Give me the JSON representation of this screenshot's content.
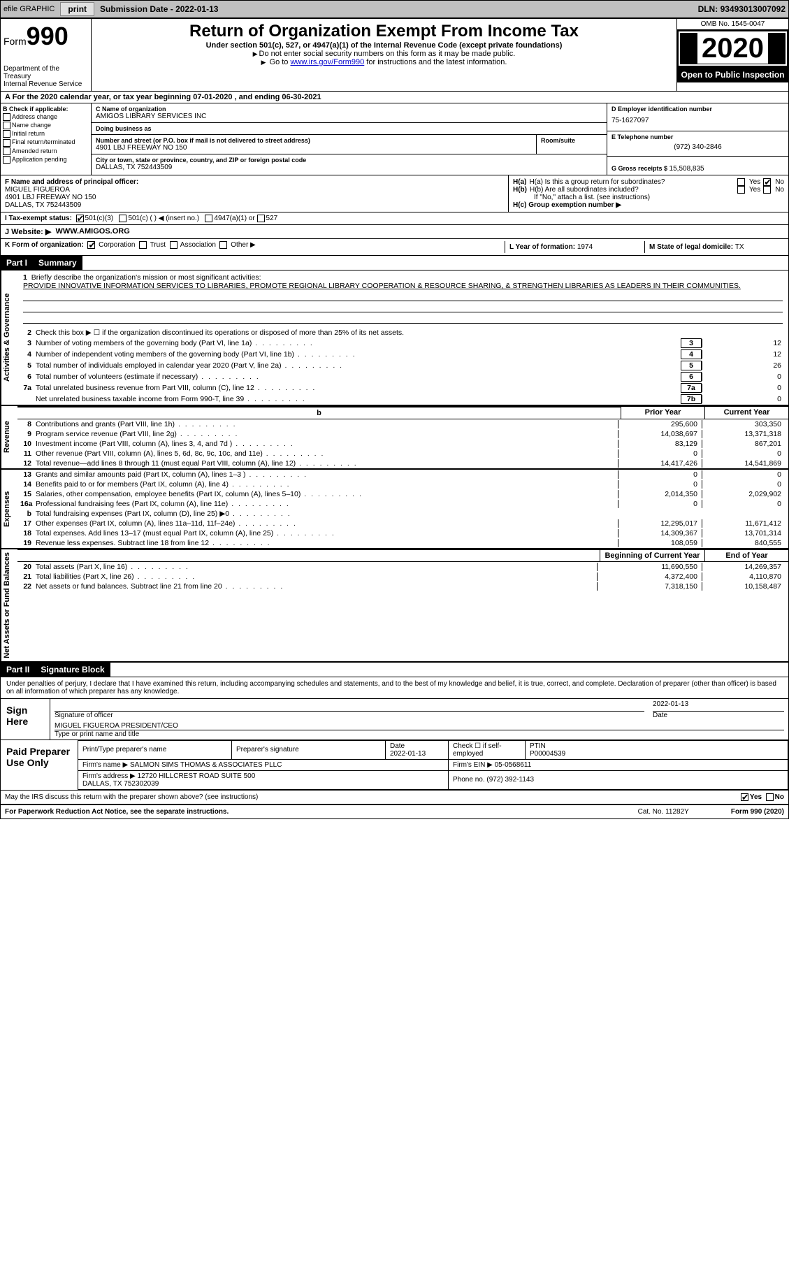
{
  "top": {
    "efile_label": "efile GRAPHIC",
    "print_btn": "print",
    "sub_date_label": "Submission Date - ",
    "sub_date": "2022-01-13",
    "dln_label": "DLN: ",
    "dln": "93493013007092"
  },
  "header": {
    "form_label": "Form",
    "form_num": "990",
    "dept": "Department of the Treasury\nInternal Revenue Service",
    "title": "Return of Organization Exempt From Income Tax",
    "subtitle": "Under section 501(c), 527, or 4947(a)(1) of the Internal Revenue Code (except private foundations)",
    "note1": "Do not enter social security numbers on this form as it may be made public.",
    "note2_pre": "Go to ",
    "note2_link": "www.irs.gov/Form990",
    "note2_post": " for instructions and the latest information.",
    "omb": "OMB No. 1545-0047",
    "year": "2020",
    "inspect": "Open to Public Inspection"
  },
  "line_a": {
    "text_pre": "For the 2020 calendar year, or tax year beginning ",
    "begin": "07-01-2020",
    "mid": " , and ending ",
    "end": "06-30-2021"
  },
  "box_b": {
    "header": "B Check if applicable:",
    "opts": [
      "Address change",
      "Name change",
      "Initial return",
      "Final return/terminated",
      "Amended return",
      "Application pending"
    ]
  },
  "box_c": {
    "name_lbl": "C Name of organization",
    "name": "AMIGOS LIBRARY SERVICES INC",
    "dba_lbl": "Doing business as",
    "dba": "",
    "addr_lbl": "Number and street (or P.O. box if mail is not delivered to street address)",
    "room_lbl": "Room/suite",
    "addr": "4901 LBJ FREEWAY NO 150",
    "city_lbl": "City or town, state or province, country, and ZIP or foreign postal code",
    "city": "DALLAS, TX  752443509"
  },
  "box_d": {
    "lbl": "D Employer identification number",
    "val": "75-1627097"
  },
  "box_e": {
    "lbl": "E Telephone number",
    "val": "(972) 340-2846"
  },
  "box_g": {
    "lbl": "G Gross receipts $ ",
    "val": "15,508,835"
  },
  "box_f": {
    "lbl": "F Name and address of principal officer:",
    "name": "MIGUEL FIGUEROA",
    "addr1": "4901 LBJ FREEWAY NO 150",
    "addr2": "DALLAS, TX  752443509"
  },
  "box_h": {
    "ha_lbl": "H(a)  Is this a group return for subordinates?",
    "ha_yes": "Yes",
    "ha_no": "No",
    "hb_lbl": "H(b)  Are all subordinates included?",
    "hb_note": "If \"No,\" attach a list. (see instructions)",
    "hc_lbl": "H(c)  Group exemption number ▶"
  },
  "box_i": {
    "lbl": "I   Tax-exempt status:",
    "o1": "501(c)(3)",
    "o2": "501(c) (  ) ◀ (insert no.)",
    "o3": "4947(a)(1) or",
    "o4": "527"
  },
  "box_j": {
    "lbl": "J   Website: ▶",
    "val": "WWW.AMIGOS.ORG"
  },
  "box_k": {
    "lbl": "K Form of organization:",
    "o1": "Corporation",
    "o2": "Trust",
    "o3": "Association",
    "o4": "Other ▶"
  },
  "box_l": {
    "lbl": "L Year of formation: ",
    "val": "1974"
  },
  "box_m": {
    "lbl": "M State of legal domicile: ",
    "val": "TX"
  },
  "parts": {
    "p1": "Part I",
    "p1_title": "Summary",
    "p2": "Part II",
    "p2_title": "Signature Block"
  },
  "side": {
    "gov": "Activities & Governance",
    "rev": "Revenue",
    "exp": "Expenses",
    "net": "Net Assets or Fund Balances"
  },
  "summary": {
    "l1_lbl": "Briefly describe the organization's mission or most significant activities:",
    "l1_text": "PROVIDE INNOVATIVE INFORMATION SERVICES TO LIBRARIES, PROMOTE REGIONAL LIBRARY COOPERATION & RESOURCE SHARING, & STRENGTHEN LIBRARIES AS LEADERS IN THEIR COMMUNITIES.",
    "l2": "Check this box ▶ ☐  if the organization discontinued its operations or disposed of more than 25% of its net assets.",
    "lines_gov": [
      {
        "n": "3",
        "d": "Number of voting members of the governing body (Part VI, line 1a)",
        "box": "3",
        "v": "12"
      },
      {
        "n": "4",
        "d": "Number of independent voting members of the governing body (Part VI, line 1b)",
        "box": "4",
        "v": "12"
      },
      {
        "n": "5",
        "d": "Total number of individuals employed in calendar year 2020 (Part V, line 2a)",
        "box": "5",
        "v": "26"
      },
      {
        "n": "6",
        "d": "Total number of volunteers (estimate if necessary)",
        "box": "6",
        "v": "0"
      },
      {
        "n": "7a",
        "d": "Total unrelated business revenue from Part VIII, column (C), line 12",
        "box": "7a",
        "v": "0"
      },
      {
        "n": "",
        "d": "Net unrelated business taxable income from Form 990-T, line 39",
        "box": "7b",
        "v": "0"
      }
    ],
    "col_hdr": {
      "py": "Prior Year",
      "cy": "Current Year"
    },
    "lines_rev": [
      {
        "n": "8",
        "d": "Contributions and grants (Part VIII, line 1h)",
        "py": "295,600",
        "cy": "303,350"
      },
      {
        "n": "9",
        "d": "Program service revenue (Part VIII, line 2g)",
        "py": "14,038,697",
        "cy": "13,371,318"
      },
      {
        "n": "10",
        "d": "Investment income (Part VIII, column (A), lines 3, 4, and 7d )",
        "py": "83,129",
        "cy": "867,201"
      },
      {
        "n": "11",
        "d": "Other revenue (Part VIII, column (A), lines 5, 6d, 8c, 9c, 10c, and 11e)",
        "py": "0",
        "cy": "0"
      },
      {
        "n": "12",
        "d": "Total revenue—add lines 8 through 11 (must equal Part VIII, column (A), line 12)",
        "py": "14,417,426",
        "cy": "14,541,869"
      }
    ],
    "lines_exp": [
      {
        "n": "13",
        "d": "Grants and similar amounts paid (Part IX, column (A), lines 1–3 )",
        "py": "0",
        "cy": "0"
      },
      {
        "n": "14",
        "d": "Benefits paid to or for members (Part IX, column (A), line 4)",
        "py": "0",
        "cy": "0"
      },
      {
        "n": "15",
        "d": "Salaries, other compensation, employee benefits (Part IX, column (A), lines 5–10)",
        "py": "2,014,350",
        "cy": "2,029,902"
      },
      {
        "n": "16a",
        "d": "Professional fundraising fees (Part IX, column (A), line 11e)",
        "py": "0",
        "cy": "0"
      },
      {
        "n": "b",
        "d": "Total fundraising expenses (Part IX, column (D), line 25) ▶0",
        "py": "",
        "cy": "",
        "shade": true
      },
      {
        "n": "17",
        "d": "Other expenses (Part IX, column (A), lines 11a–11d, 11f–24e)",
        "py": "12,295,017",
        "cy": "11,671,412"
      },
      {
        "n": "18",
        "d": "Total expenses. Add lines 13–17 (must equal Part IX, column (A), line 25)",
        "py": "14,309,367",
        "cy": "13,701,314"
      },
      {
        "n": "19",
        "d": "Revenue less expenses. Subtract line 18 from line 12",
        "py": "108,059",
        "cy": "840,555"
      }
    ],
    "col_hdr2": {
      "py": "Beginning of Current Year",
      "cy": "End of Year"
    },
    "lines_net": [
      {
        "n": "20",
        "d": "Total assets (Part X, line 16)",
        "py": "11,690,550",
        "cy": "14,269,357"
      },
      {
        "n": "21",
        "d": "Total liabilities (Part X, line 26)",
        "py": "4,372,400",
        "cy": "4,110,870"
      },
      {
        "n": "22",
        "d": "Net assets or fund balances. Subtract line 21 from line 20",
        "py": "7,318,150",
        "cy": "10,158,487"
      }
    ]
  },
  "sig": {
    "decl": "Under penalties of perjury, I declare that I have examined this return, including accompanying schedules and statements, and to the best of my knowledge and belief, it is true, correct, and complete. Declaration of preparer (other than officer) is based on all information of which preparer has any knowledge.",
    "sign_here": "Sign Here",
    "sig_officer": "Signature of officer",
    "date_lbl": "Date",
    "date_val": "2022-01-13",
    "name_title": "MIGUEL FIGUEROA  PRESIDENT/CEO",
    "name_lbl": "Type or print name and title",
    "paid": "Paid Preparer Use Only",
    "prep_name_lbl": "Print/Type preparer's name",
    "prep_sig_lbl": "Preparer's signature",
    "prep_date": "2022-01-13",
    "self_emp": "Check ☐ if self-employed",
    "ptin_lbl": "PTIN",
    "ptin": "P00004539",
    "firm_name_lbl": "Firm's name    ▶",
    "firm_name": "SALMON SIMS THOMAS & ASSOCIATES PLLC",
    "firm_ein_lbl": "Firm's EIN ▶",
    "firm_ein": "05-0568611",
    "firm_addr_lbl": "Firm's address ▶",
    "firm_addr": "12720 HILLCREST ROAD SUITE 500\nDALLAS, TX  752302039",
    "phone_lbl": "Phone no. ",
    "phone": "(972) 392-1143",
    "discuss": "May the IRS discuss this return with the preparer shown above? (see instructions)",
    "yes": "Yes",
    "no": "No"
  },
  "footer": {
    "pra": "For Paperwork Reduction Act Notice, see the separate instructions.",
    "cat": "Cat. No. 11282Y",
    "form": "Form 990 (2020)"
  }
}
